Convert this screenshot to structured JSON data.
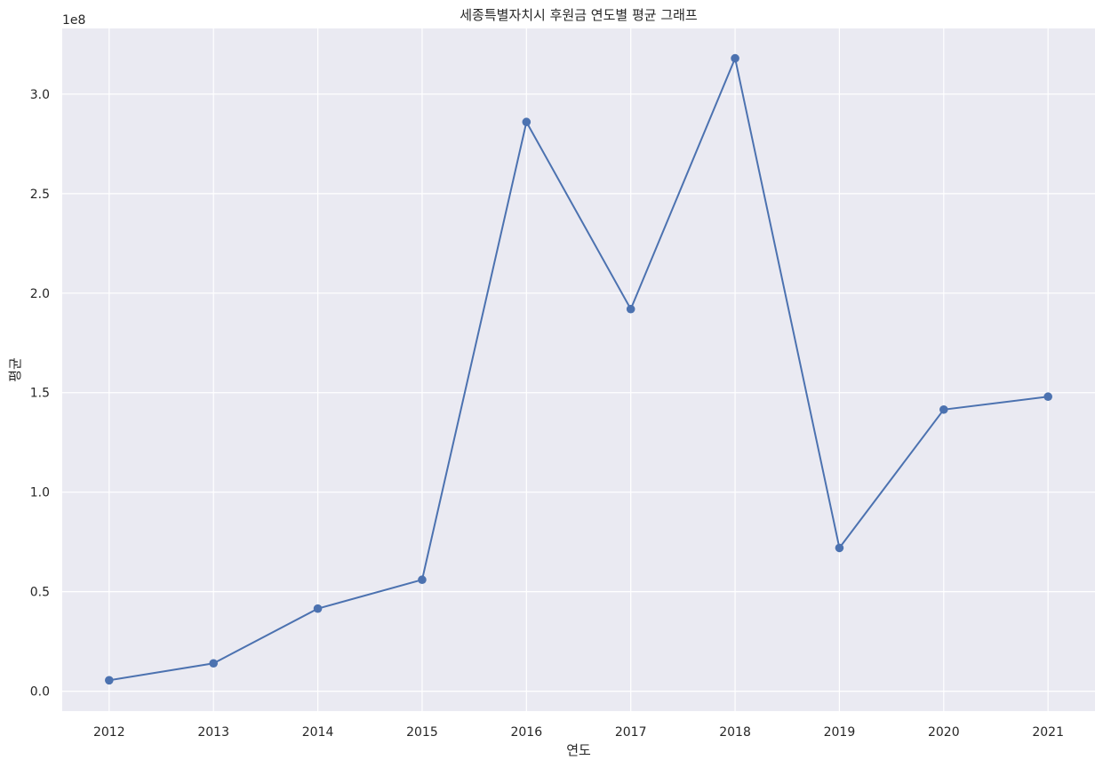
{
  "chart_data": {
    "type": "line",
    "title": "세종특별자치시 후원금 연도별 평균 그래프",
    "xlabel": "연도",
    "ylabel": "평균",
    "y_offset_text": "1e8",
    "x": [
      2012,
      2013,
      2014,
      2015,
      2016,
      2017,
      2018,
      2019,
      2020,
      2021
    ],
    "series": [
      {
        "values": [
          5500000,
          14000000,
          41500000,
          56000000,
          286000000,
          192000000,
          318000000,
          72000000,
          141500000,
          148000000
        ]
      }
    ],
    "xticks": [
      "2012",
      "2013",
      "2014",
      "2015",
      "2016",
      "2017",
      "2018",
      "2019",
      "2020",
      "2021"
    ],
    "yticks": [
      {
        "value": 0,
        "label": "0.0"
      },
      {
        "value": 50000000,
        "label": "0.5"
      },
      {
        "value": 100000000,
        "label": "1.0"
      },
      {
        "value": 150000000,
        "label": "1.5"
      },
      {
        "value": 200000000,
        "label": "2.0"
      },
      {
        "value": 250000000,
        "label": "2.5"
      },
      {
        "value": 300000000,
        "label": "3.0"
      }
    ],
    "xlim": [
      2011.55,
      2021.45
    ],
    "ylim": [
      -10000000,
      333000000
    ],
    "grid": true,
    "marker": "circle",
    "colors": {
      "line": "#4c72b0",
      "background": "#eaeaf2",
      "grid": "#ffffff"
    }
  }
}
